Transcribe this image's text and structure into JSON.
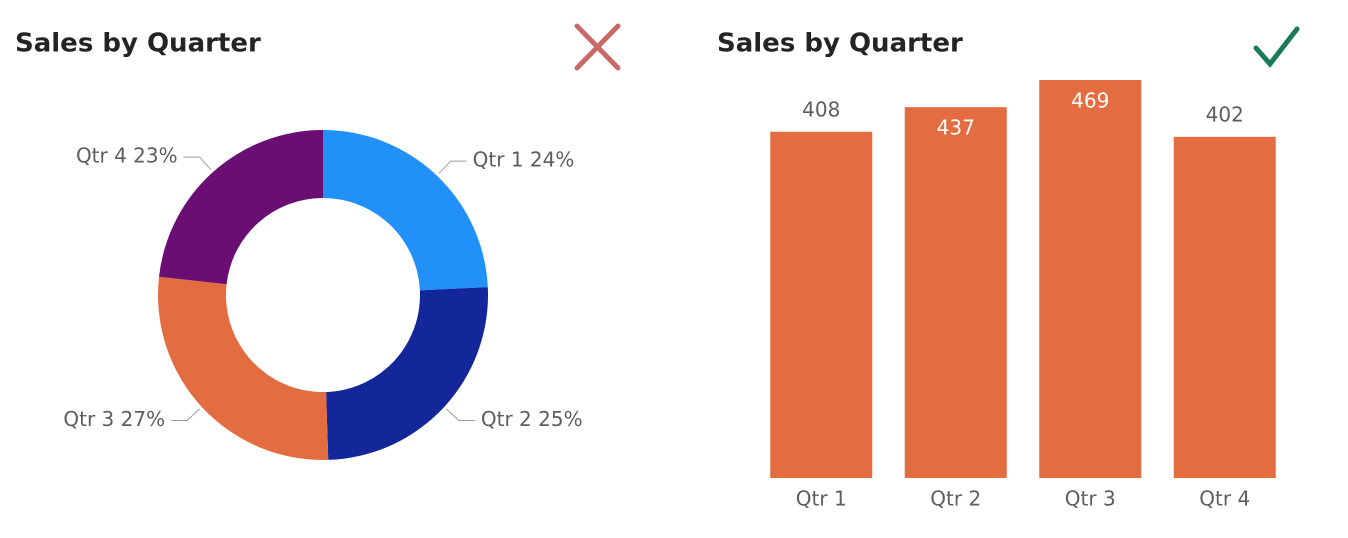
{
  "chart_data": [
    {
      "type": "donut",
      "title": "Sales by Quarter",
      "values": [
        24,
        25,
        27,
        23
      ],
      "value_labels": [
        "Qtr 1 24%",
        "Qtr 2 25%",
        "Qtr 3 27%",
        "Qtr 4 23%"
      ],
      "colors": [
        "#2190f8",
        "#14279a",
        "#e46c41",
        "#6a0e74"
      ]
    },
    {
      "type": "bar",
      "title": "Sales by Quarter",
      "categories": [
        "Qtr 1",
        "Qtr 2",
        "Qtr 3",
        "Qtr 4"
      ],
      "values": [
        408,
        437,
        469,
        402
      ],
      "color": "#e46c41"
    }
  ]
}
